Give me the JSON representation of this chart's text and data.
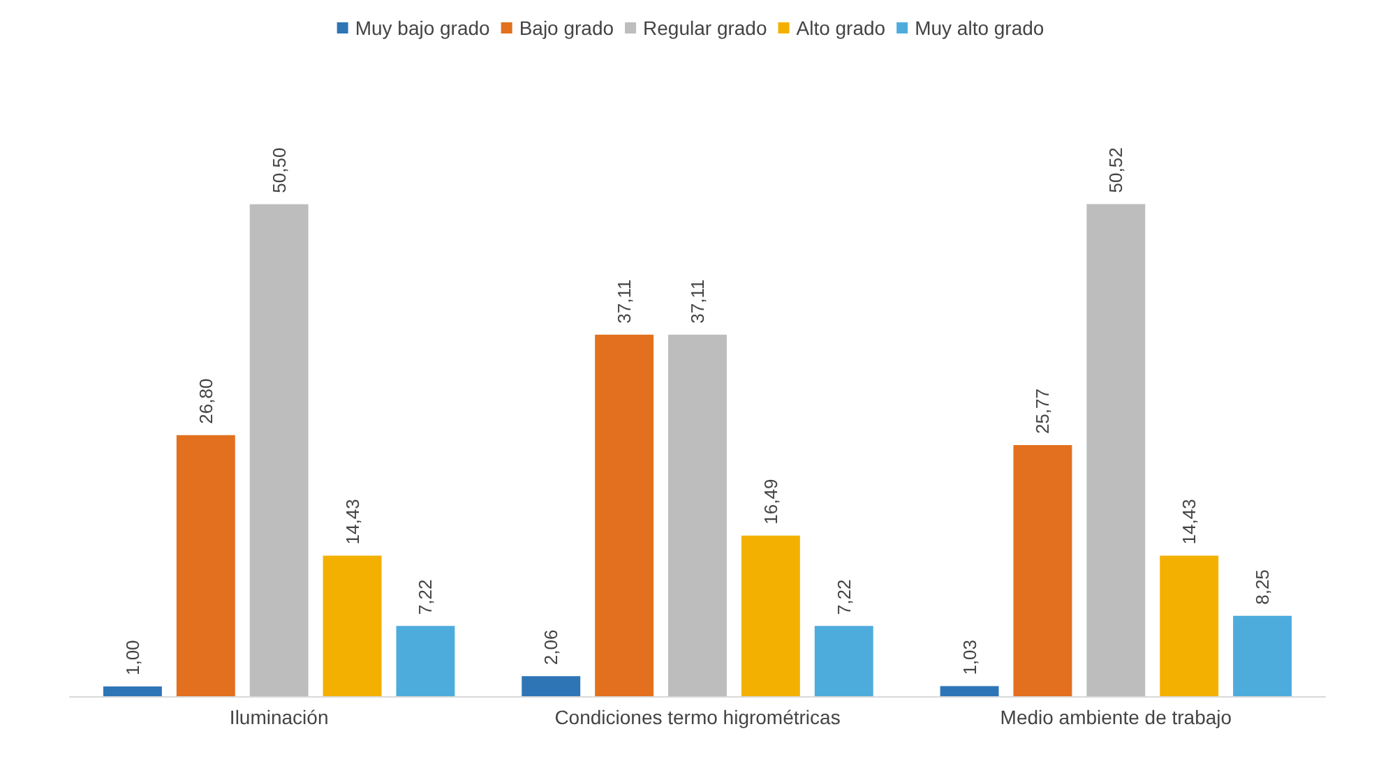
{
  "chart_data": {
    "type": "bar",
    "categories": [
      "Iluminación",
      "Condiciones termo higrométricas",
      "Medio ambiente de trabajo"
    ],
    "series": [
      {
        "name": "Muy bajo grado",
        "color": "#2e75b6",
        "values": [
          1.0,
          2.06,
          1.03
        ],
        "value_labels": [
          "1,00",
          "2,06",
          "1,03"
        ]
      },
      {
        "name": "Bajo grado",
        "color": "#e2701e",
        "values": [
          26.8,
          37.11,
          25.77
        ],
        "value_labels": [
          "26,80",
          "37,11",
          "25,77"
        ]
      },
      {
        "name": "Regular grado",
        "color": "#bdbdbd",
        "values": [
          50.5,
          37.11,
          50.52
        ],
        "value_labels": [
          "50,50",
          "37,11",
          "50,52"
        ]
      },
      {
        "name": "Alto grado",
        "color": "#f4b000",
        "values": [
          14.43,
          16.49,
          14.43
        ],
        "value_labels": [
          "14,43",
          "16,49",
          "14,43"
        ]
      },
      {
        "name": "Muy alto grado",
        "color": "#4eacdc",
        "values": [
          7.22,
          7.22,
          8.25
        ],
        "value_labels": [
          "7,22",
          "7,22",
          "8,25"
        ]
      }
    ],
    "legend": "top"
  }
}
